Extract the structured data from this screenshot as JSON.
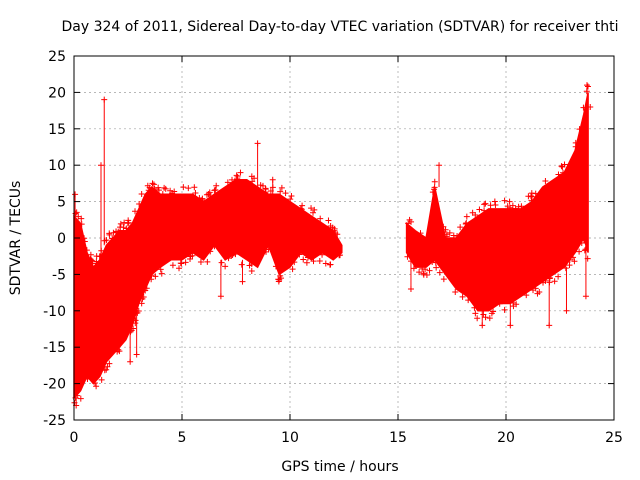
{
  "chart_data": {
    "type": "scatter",
    "title": "Day 324 of 2011, Sidereal Day-to-day VTEC variation (SDTVAR) for receiver thti",
    "xlabel": "GPS time / hours",
    "ylabel": "SDTVAR / TECUs",
    "xlim": [
      0,
      25
    ],
    "ylim": [
      -25,
      25
    ],
    "xticks": [
      0,
      5,
      10,
      15,
      20,
      25
    ],
    "yticks": [
      -25,
      -20,
      -15,
      -10,
      -5,
      0,
      5,
      10,
      15,
      20,
      25
    ],
    "grid": true,
    "marker": "+",
    "color": "#ff0000",
    "envelope": [
      {
        "x": 0.0,
        "low": -22,
        "high": 3
      },
      {
        "x": 0.3,
        "low": -21,
        "high": 2
      },
      {
        "x": 0.6,
        "low": -19,
        "high": -2
      },
      {
        "x": 0.9,
        "low": -20,
        "high": -4
      },
      {
        "x": 1.2,
        "low": -19,
        "high": -3
      },
      {
        "x": 1.5,
        "low": -17,
        "high": -1
      },
      {
        "x": 1.8,
        "low": -16,
        "high": 0
      },
      {
        "x": 2.1,
        "low": -15,
        "high": 1
      },
      {
        "x": 2.4,
        "low": -14,
        "high": 1
      },
      {
        "x": 2.7,
        "low": -12,
        "high": 2
      },
      {
        "x": 3.0,
        "low": -9,
        "high": 4
      },
      {
        "x": 3.3,
        "low": -7,
        "high": 6
      },
      {
        "x": 3.6,
        "low": -5,
        "high": 7
      },
      {
        "x": 4.0,
        "low": -4,
        "high": 6
      },
      {
        "x": 4.5,
        "low": -3,
        "high": 6
      },
      {
        "x": 5.0,
        "low": -3,
        "high": 6
      },
      {
        "x": 5.5,
        "low": -2,
        "high": 6
      },
      {
        "x": 6.0,
        "low": -3,
        "high": 5
      },
      {
        "x": 6.5,
        "low": -1,
        "high": 6
      },
      {
        "x": 7.0,
        "low": -3,
        "high": 7
      },
      {
        "x": 7.5,
        "low": -2,
        "high": 8
      },
      {
        "x": 8.0,
        "low": -3,
        "high": 8
      },
      {
        "x": 8.5,
        "low": -4,
        "high": 7
      },
      {
        "x": 9.0,
        "low": -1,
        "high": 6
      },
      {
        "x": 9.5,
        "low": -5,
        "high": 6
      },
      {
        "x": 10.0,
        "low": -4,
        "high": 5
      },
      {
        "x": 10.5,
        "low": -2,
        "high": 4
      },
      {
        "x": 11.0,
        "low": -3,
        "high": 3
      },
      {
        "x": 11.5,
        "low": -2,
        "high": 2
      },
      {
        "x": 12.0,
        "low": -3,
        "high": 1
      },
      {
        "x": 12.4,
        "low": -2,
        "high": -1
      },
      {
        "x": 15.4,
        "low": -2,
        "high": 2
      },
      {
        "x": 15.8,
        "low": -4,
        "high": 1
      },
      {
        "x": 16.3,
        "low": -4,
        "high": 0
      },
      {
        "x": 16.7,
        "low": -3,
        "high": 7
      },
      {
        "x": 17.2,
        "low": -5,
        "high": 0
      },
      {
        "x": 17.7,
        "low": -7,
        "high": 0
      },
      {
        "x": 18.2,
        "low": -8,
        "high": 2
      },
      {
        "x": 18.7,
        "low": -10,
        "high": 3
      },
      {
        "x": 19.2,
        "low": -10,
        "high": 4
      },
      {
        "x": 19.7,
        "low": -9,
        "high": 4
      },
      {
        "x": 20.2,
        "low": -9,
        "high": 4
      },
      {
        "x": 20.7,
        "low": -8,
        "high": 4
      },
      {
        "x": 21.2,
        "low": -7,
        "high": 5
      },
      {
        "x": 21.7,
        "low": -6,
        "high": 7
      },
      {
        "x": 22.2,
        "low": -5,
        "high": 8
      },
      {
        "x": 22.7,
        "low": -4,
        "high": 9
      },
      {
        "x": 23.2,
        "low": -2,
        "high": 12
      },
      {
        "x": 23.6,
        "low": 0,
        "high": 17
      },
      {
        "x": 23.8,
        "low": -2,
        "high": 20
      }
    ],
    "outliers": [
      {
        "x": 1.4,
        "y": 19
      },
      {
        "x": 1.25,
        "y": 10
      },
      {
        "x": 8.5,
        "y": 13
      },
      {
        "x": 9.2,
        "y": 8
      },
      {
        "x": 7.8,
        "y": -6
      },
      {
        "x": 6.8,
        "y": -8
      },
      {
        "x": 2.9,
        "y": -16
      },
      {
        "x": 2.6,
        "y": -17
      },
      {
        "x": 0.1,
        "y": -23
      },
      {
        "x": 0.05,
        "y": 6
      },
      {
        "x": 15.6,
        "y": -7
      },
      {
        "x": 16.9,
        "y": 10
      },
      {
        "x": 18.9,
        "y": -12
      },
      {
        "x": 20.2,
        "y": -12
      },
      {
        "x": 22.0,
        "y": -12
      },
      {
        "x": 22.8,
        "y": -10
      },
      {
        "x": 23.7,
        "y": -8
      },
      {
        "x": 23.9,
        "y": 18
      },
      {
        "x": 23.75,
        "y": 21
      }
    ]
  }
}
